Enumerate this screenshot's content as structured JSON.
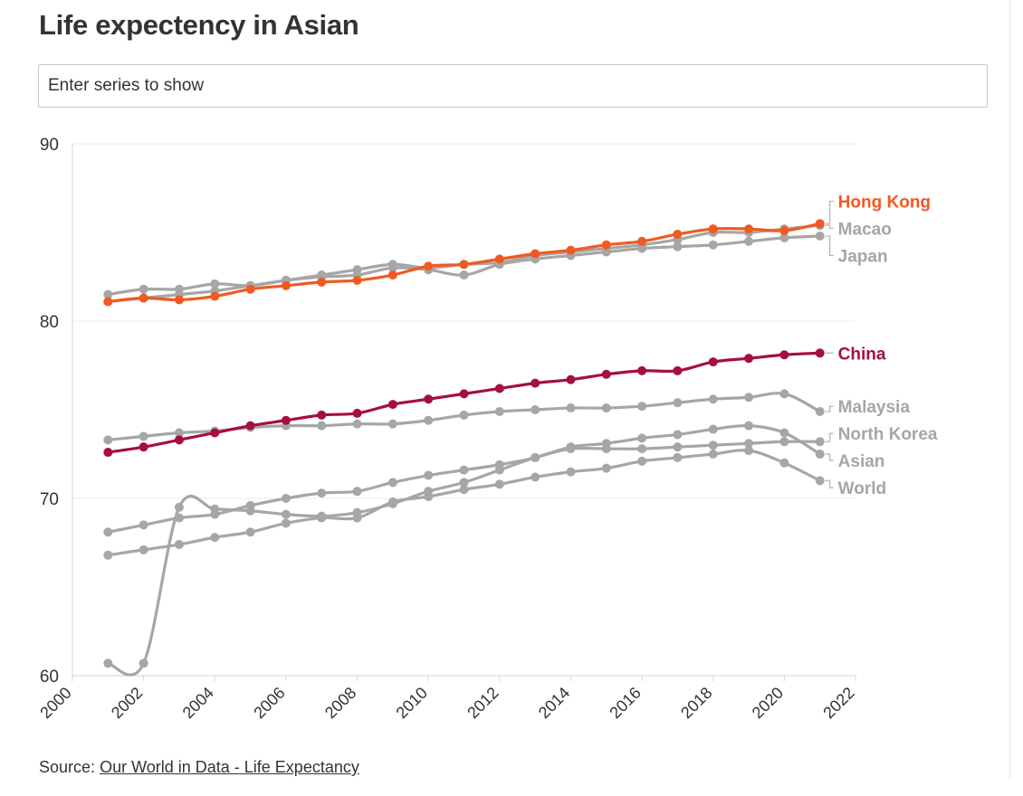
{
  "page": {
    "title": "Life expectency in Asian",
    "search": {
      "placeholder": "Enter series to show",
      "value": ""
    },
    "source_label": "Source:",
    "source_link": "Our World in Data - Life Expectancy"
  },
  "colors": {
    "hong_kong": "#f05a22",
    "china": "#a50f3f",
    "muted": "#a6a6a6",
    "grid": "#ebebeb",
    "axis_text": "#333333"
  },
  "chart_data": {
    "type": "line",
    "title": "Life expectency in Asian",
    "xlabel": "",
    "ylabel": "",
    "xlim": [
      2000,
      2022
    ],
    "ylim": [
      60,
      90
    ],
    "x_ticks": [
      "2000",
      "2002",
      "2004",
      "2006",
      "2008",
      "2010",
      "2012",
      "2014",
      "2016",
      "2018",
      "2020",
      "2022"
    ],
    "y_ticks": [
      "60",
      "70",
      "80",
      "90"
    ],
    "grid": "horizontal",
    "x": [
      2001,
      2002,
      2003,
      2004,
      2005,
      2006,
      2007,
      2008,
      2009,
      2010,
      2011,
      2012,
      2013,
      2014,
      2015,
      2016,
      2017,
      2018,
      2019,
      2020,
      2021
    ],
    "series": [
      {
        "name": "World",
        "values": [
          66.8,
          67.1,
          67.4,
          67.8,
          68.1,
          68.6,
          68.9,
          68.9,
          69.8,
          70.1,
          70.5,
          70.8,
          71.2,
          71.5,
          71.7,
          72.1,
          72.3,
          72.5,
          72.7,
          72.0,
          71.0
        ]
      },
      {
        "name": "Asian",
        "values": [
          68.1,
          68.5,
          68.9,
          69.1,
          69.6,
          70.0,
          70.3,
          70.4,
          70.9,
          71.3,
          71.6,
          71.9,
          72.3,
          72.9,
          73.1,
          73.4,
          73.6,
          73.9,
          74.1,
          73.7,
          72.5
        ]
      },
      {
        "name": "North Korea",
        "values": [
          60.7,
          60.7,
          69.5,
          69.4,
          69.3,
          69.1,
          69.0,
          69.2,
          69.7,
          70.4,
          70.9,
          71.6,
          72.3,
          72.8,
          72.8,
          72.8,
          72.9,
          73.0,
          73.1,
          73.2,
          73.2
        ]
      },
      {
        "name": "Malaysia",
        "values": [
          73.3,
          73.5,
          73.7,
          73.8,
          74.0,
          74.1,
          74.1,
          74.2,
          74.2,
          74.4,
          74.7,
          74.9,
          75.0,
          75.1,
          75.1,
          75.2,
          75.4,
          75.6,
          75.7,
          75.9,
          74.9
        ]
      },
      {
        "name": "Japan",
        "values": [
          81.5,
          81.8,
          81.8,
          82.1,
          82.0,
          82.3,
          82.5,
          82.6,
          83.0,
          82.9,
          82.6,
          83.2,
          83.5,
          83.7,
          83.9,
          84.1,
          84.2,
          84.3,
          84.5,
          84.7,
          84.8
        ]
      },
      {
        "name": "Macao",
        "values": [
          81.1,
          81.3,
          81.5,
          81.7,
          82.0,
          82.3,
          82.6,
          82.9,
          83.2,
          83.0,
          83.2,
          83.3,
          83.7,
          83.9,
          84.1,
          84.3,
          84.6,
          85.0,
          85.0,
          85.2,
          85.4
        ]
      },
      {
        "name": "China",
        "values": [
          72.6,
          72.9,
          73.3,
          73.7,
          74.1,
          74.4,
          74.7,
          74.8,
          75.3,
          75.6,
          75.9,
          76.2,
          76.5,
          76.7,
          77.0,
          77.2,
          77.2,
          77.7,
          77.9,
          78.1,
          78.2
        ]
      },
      {
        "name": "Hong Kong",
        "values": [
          81.1,
          81.3,
          81.2,
          81.4,
          81.8,
          82.0,
          82.2,
          82.3,
          82.6,
          83.1,
          83.2,
          83.5,
          83.8,
          84.0,
          84.3,
          84.5,
          84.9,
          85.2,
          85.2,
          85.1,
          85.5
        ]
      }
    ]
  }
}
